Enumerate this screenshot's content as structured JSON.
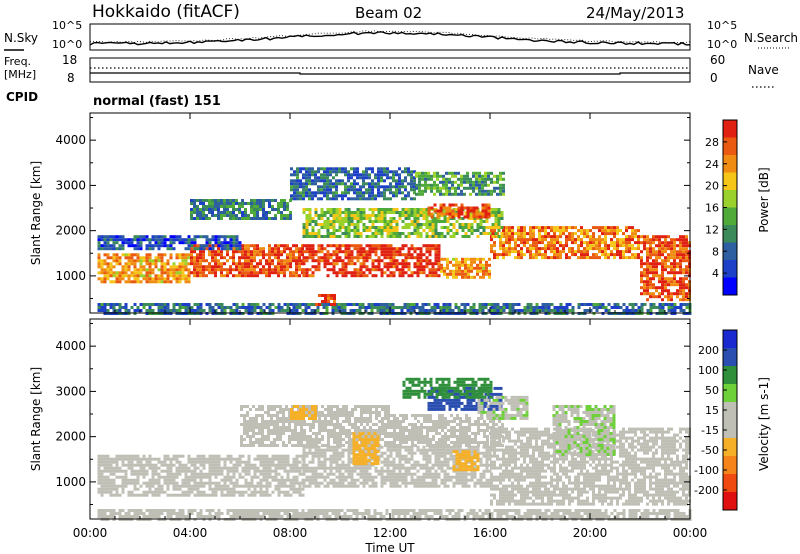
{
  "header": {
    "station": "Hokkaido (fitACF)",
    "beam": "Beam 02",
    "date": "24/May/2013"
  },
  "noise_panel": {
    "left_label": "N.Sky",
    "right_label": "N.Search",
    "left_ticks": [
      "10^5",
      "10^0"
    ],
    "right_ticks": [
      "10^5",
      "10^0"
    ]
  },
  "freq_panel": {
    "left_label_1": "Freq.",
    "left_label_2": "[MHz]",
    "left_ticks": [
      "18",
      "8"
    ],
    "right_label": "Nave",
    "right_ticks": [
      "60",
      "0"
    ]
  },
  "cpid": {
    "label": "CPID",
    "value": "normal (fast) 151"
  },
  "axes": {
    "ylabel": "Slant Range [km]",
    "yticks": [
      "4000",
      "3000",
      "2000",
      "1000"
    ],
    "xticks": [
      "00:00",
      "04:00",
      "08:00",
      "12:00",
      "16:00",
      "20:00",
      "00:00"
    ],
    "xlabel": "Time UT"
  },
  "colors": {
    "power_scale": [
      "#0000ff",
      "#1e3fc8",
      "#2e5fa0",
      "#3a8a5a",
      "#4faa3a",
      "#9bd12b",
      "#f5c518",
      "#f08c12",
      "#ea5a10",
      "#e02010"
    ],
    "velocity_scale": [
      "#e01010",
      "#f04a10",
      "#f5851a",
      "#f5b028",
      "#bfbfb5",
      "#bfbfb5",
      "#6ed13a",
      "#2f8f3a",
      "#2a4fb0",
      "#1a2ad0"
    ],
    "ground_scatter": "#bfbfb5"
  },
  "chart_data": [
    {
      "type": "heatmap",
      "title": "Power",
      "colorbar_label": "Power [dB]",
      "colorbar_ticks": [
        "28",
        "24",
        "20",
        "16",
        "12",
        "8",
        "4"
      ],
      "zlim": [
        0,
        30
      ],
      "x_unit": "hours UT",
      "xlim": [
        0,
        24
      ],
      "ylim": [
        180,
        4600
      ],
      "bands": [
        {
          "t0": 0.3,
          "t1": 24,
          "r0": 200,
          "r1": 400,
          "z": 8
        },
        {
          "t0": 0.3,
          "t1": 4.0,
          "r0": 900,
          "r1": 1500,
          "z": 22
        },
        {
          "t0": 4.0,
          "t1": 8.5,
          "r0": 1000,
          "r1": 1700,
          "z": 26
        },
        {
          "t0": 8.5,
          "t1": 14.0,
          "r0": 1000,
          "r1": 1700,
          "z": 28
        },
        {
          "t0": 14.0,
          "t1": 16.0,
          "r0": 1000,
          "r1": 1400,
          "z": 22
        },
        {
          "t0": 16.0,
          "t1": 22.0,
          "r0": 1400,
          "r1": 2100,
          "z": 24
        },
        {
          "t0": 22.0,
          "t1": 24.0,
          "r0": 500,
          "r1": 1900,
          "z": 26
        },
        {
          "t0": 8.5,
          "t1": 16.5,
          "r0": 1900,
          "r1": 2500,
          "z": 16
        },
        {
          "t0": 13.5,
          "t1": 16.0,
          "r0": 2300,
          "r1": 2600,
          "z": 26
        },
        {
          "t0": 4.0,
          "t1": 8.0,
          "r0": 2300,
          "r1": 2700,
          "z": 10
        },
        {
          "t0": 8.0,
          "t1": 13.0,
          "r0": 2700,
          "r1": 3400,
          "z": 8
        },
        {
          "t0": 13.0,
          "t1": 16.5,
          "r0": 2800,
          "r1": 3300,
          "z": 12
        },
        {
          "t0": 0.3,
          "t1": 6.0,
          "r0": 1600,
          "r1": 1900,
          "z": 6
        },
        {
          "t0": 9.0,
          "t1": 9.8,
          "r0": 400,
          "r1": 600,
          "z": 26
        }
      ]
    },
    {
      "type": "heatmap",
      "title": "Velocity",
      "colorbar_label": "Velocity [m s-1]",
      "colorbar_ticks": [
        "200",
        "100",
        "50",
        "15",
        "-15",
        "-50",
        "-100",
        "-200"
      ],
      "zlim": [
        -250,
        250
      ],
      "x_unit": "hours UT",
      "xlim": [
        0,
        24
      ],
      "ylim": [
        180,
        4600
      ],
      "bands": [
        {
          "t0": 0.3,
          "t1": 24,
          "r0": 200,
          "r1": 400,
          "z": 0
        },
        {
          "t0": 0.3,
          "t1": 8.5,
          "r0": 700,
          "r1": 1600,
          "z": 0
        },
        {
          "t0": 8.5,
          "t1": 16.0,
          "r0": 900,
          "r1": 1800,
          "z": 0
        },
        {
          "t0": 16.0,
          "t1": 24.0,
          "r0": 500,
          "r1": 2200,
          "z": 0
        },
        {
          "t0": 6.0,
          "t1": 12.0,
          "r0": 1800,
          "r1": 2700,
          "z": 0
        },
        {
          "t0": 12.0,
          "t1": 16.5,
          "r0": 1800,
          "r1": 2500,
          "z": 0
        },
        {
          "t0": 8.0,
          "t1": 9.0,
          "r0": 2400,
          "r1": 2700,
          "z": -70
        },
        {
          "t0": 10.5,
          "t1": 11.5,
          "r0": 1400,
          "r1": 2100,
          "z": -70
        },
        {
          "t0": 14.5,
          "t1": 15.5,
          "r0": 1300,
          "r1": 1700,
          "z": -70
        },
        {
          "t0": 13.5,
          "t1": 16.5,
          "r0": 2600,
          "r1": 3100,
          "z": 170
        },
        {
          "t0": 15.5,
          "t1": 17.5,
          "r0": 2400,
          "r1": 2900,
          "z": 40
        },
        {
          "t0": 18.5,
          "t1": 21.0,
          "r0": 1600,
          "r1": 2700,
          "z": 40
        },
        {
          "t0": 12.5,
          "t1": 16.0,
          "r0": 2900,
          "r1": 3300,
          "z": 120
        }
      ]
    }
  ]
}
